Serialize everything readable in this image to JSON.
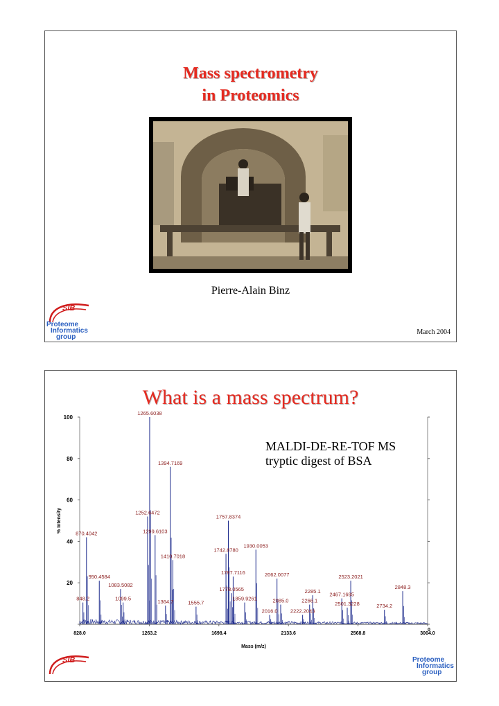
{
  "slide1": {
    "title_line1": "Mass spectrometry",
    "title_line2": "in Proteomics",
    "author": "Pierre-Alain Binz",
    "date": "March 2004",
    "logo_sib": "SIB",
    "logo_proteome_1": "Proteome",
    "logo_proteome_2": "Informatics",
    "logo_proteome_3": "group"
  },
  "slide2": {
    "title": "What is a mass spectrum?",
    "desc_line1": "MALDI-DE-RE-TOF MS",
    "desc_line2": "tryptic digest of BSA",
    "logo_sib": "SIB",
    "logo_proteome_1": "Proteome",
    "logo_proteome_2": "Informatics",
    "logo_proteome_3": "group"
  },
  "chart_data": {
    "type": "line",
    "xlabel": "Mass (m/z)",
    "ylabel": "% Intensity",
    "xlim": [
      828.0,
      3004.0
    ],
    "ylim": [
      0,
      100
    ],
    "x_ticks": [
      "828.0",
      "1263.2",
      "1698.4",
      "2133.6",
      "2568.8",
      "3004.0"
    ],
    "y_ticks": [
      "100",
      "80",
      "60",
      "40",
      "20",
      "0"
    ],
    "colors": {
      "trace": "#1c2a8c",
      "label": "#8a1b1b",
      "marker": "#3aa0e0"
    },
    "peaks": [
      {
        "mass": 848.2,
        "intensity": 10.5,
        "label": "848.2"
      },
      {
        "mass": 870.4042,
        "intensity": 42,
        "label": "870.4042"
      },
      {
        "mass": 950.4584,
        "intensity": 21,
        "label": "950.4584"
      },
      {
        "mass": 1083.5082,
        "intensity": 17,
        "label": "1083.5082"
      },
      {
        "mass": 1099.5,
        "intensity": 10.5,
        "label": "1099.5"
      },
      {
        "mass": 1252.6472,
        "intensity": 52,
        "label": "1252.6472"
      },
      {
        "mass": 1265.6038,
        "intensity": 100,
        "label": "1265.6038"
      },
      {
        "mass": 1299.6103,
        "intensity": 43,
        "label": "1299.6103"
      },
      {
        "mass": 1364.7,
        "intensity": 9,
        "label": "1364.7"
      },
      {
        "mass": 1394.7169,
        "intensity": 76,
        "label": "1394.7169"
      },
      {
        "mass": 1410.7018,
        "intensity": 31,
        "label": "1410.7018"
      },
      {
        "mass": 1555.7,
        "intensity": 8.5,
        "label": "1555.7"
      },
      {
        "mass": 1742.878,
        "intensity": 34,
        "label": "1742.8780"
      },
      {
        "mass": 1757.8374,
        "intensity": 50,
        "label": "1757.8374"
      },
      {
        "mass": 1778.0565,
        "intensity": 15,
        "label": "1778.0565"
      },
      {
        "mass": 1787.7116,
        "intensity": 23,
        "label": "1787.7116"
      },
      {
        "mass": 1859.9261,
        "intensity": 10.5,
        "label": "1859.9261"
      },
      {
        "mass": 1930.0053,
        "intensity": 36,
        "label": "1930.0053"
      },
      {
        "mass": 2016.0,
        "intensity": 4.5,
        "label": "2016.0"
      },
      {
        "mass": 2062.0077,
        "intensity": 22,
        "label": "2062.0077"
      },
      {
        "mass": 2085.0,
        "intensity": 9.5,
        "label": "2085.0"
      },
      {
        "mass": 2222.2043,
        "intensity": 4.5,
        "label": "2222.2043"
      },
      {
        "mass": 2266.1,
        "intensity": 9.5,
        "label": "2266.1"
      },
      {
        "mass": 2285.1,
        "intensity": 14,
        "label": "2285.1"
      },
      {
        "mass": 2467.1695,
        "intensity": 12.5,
        "label": "2467.1695"
      },
      {
        "mass": 2501.3228,
        "intensity": 8,
        "label": "2501.3228"
      },
      {
        "mass": 2523.2021,
        "intensity": 21,
        "label": "2523.2021"
      },
      {
        "mass": 2734.2,
        "intensity": 7,
        "label": "2734.2"
      },
      {
        "mass": 2848.3,
        "intensity": 16,
        "label": "2848.3"
      }
    ]
  }
}
